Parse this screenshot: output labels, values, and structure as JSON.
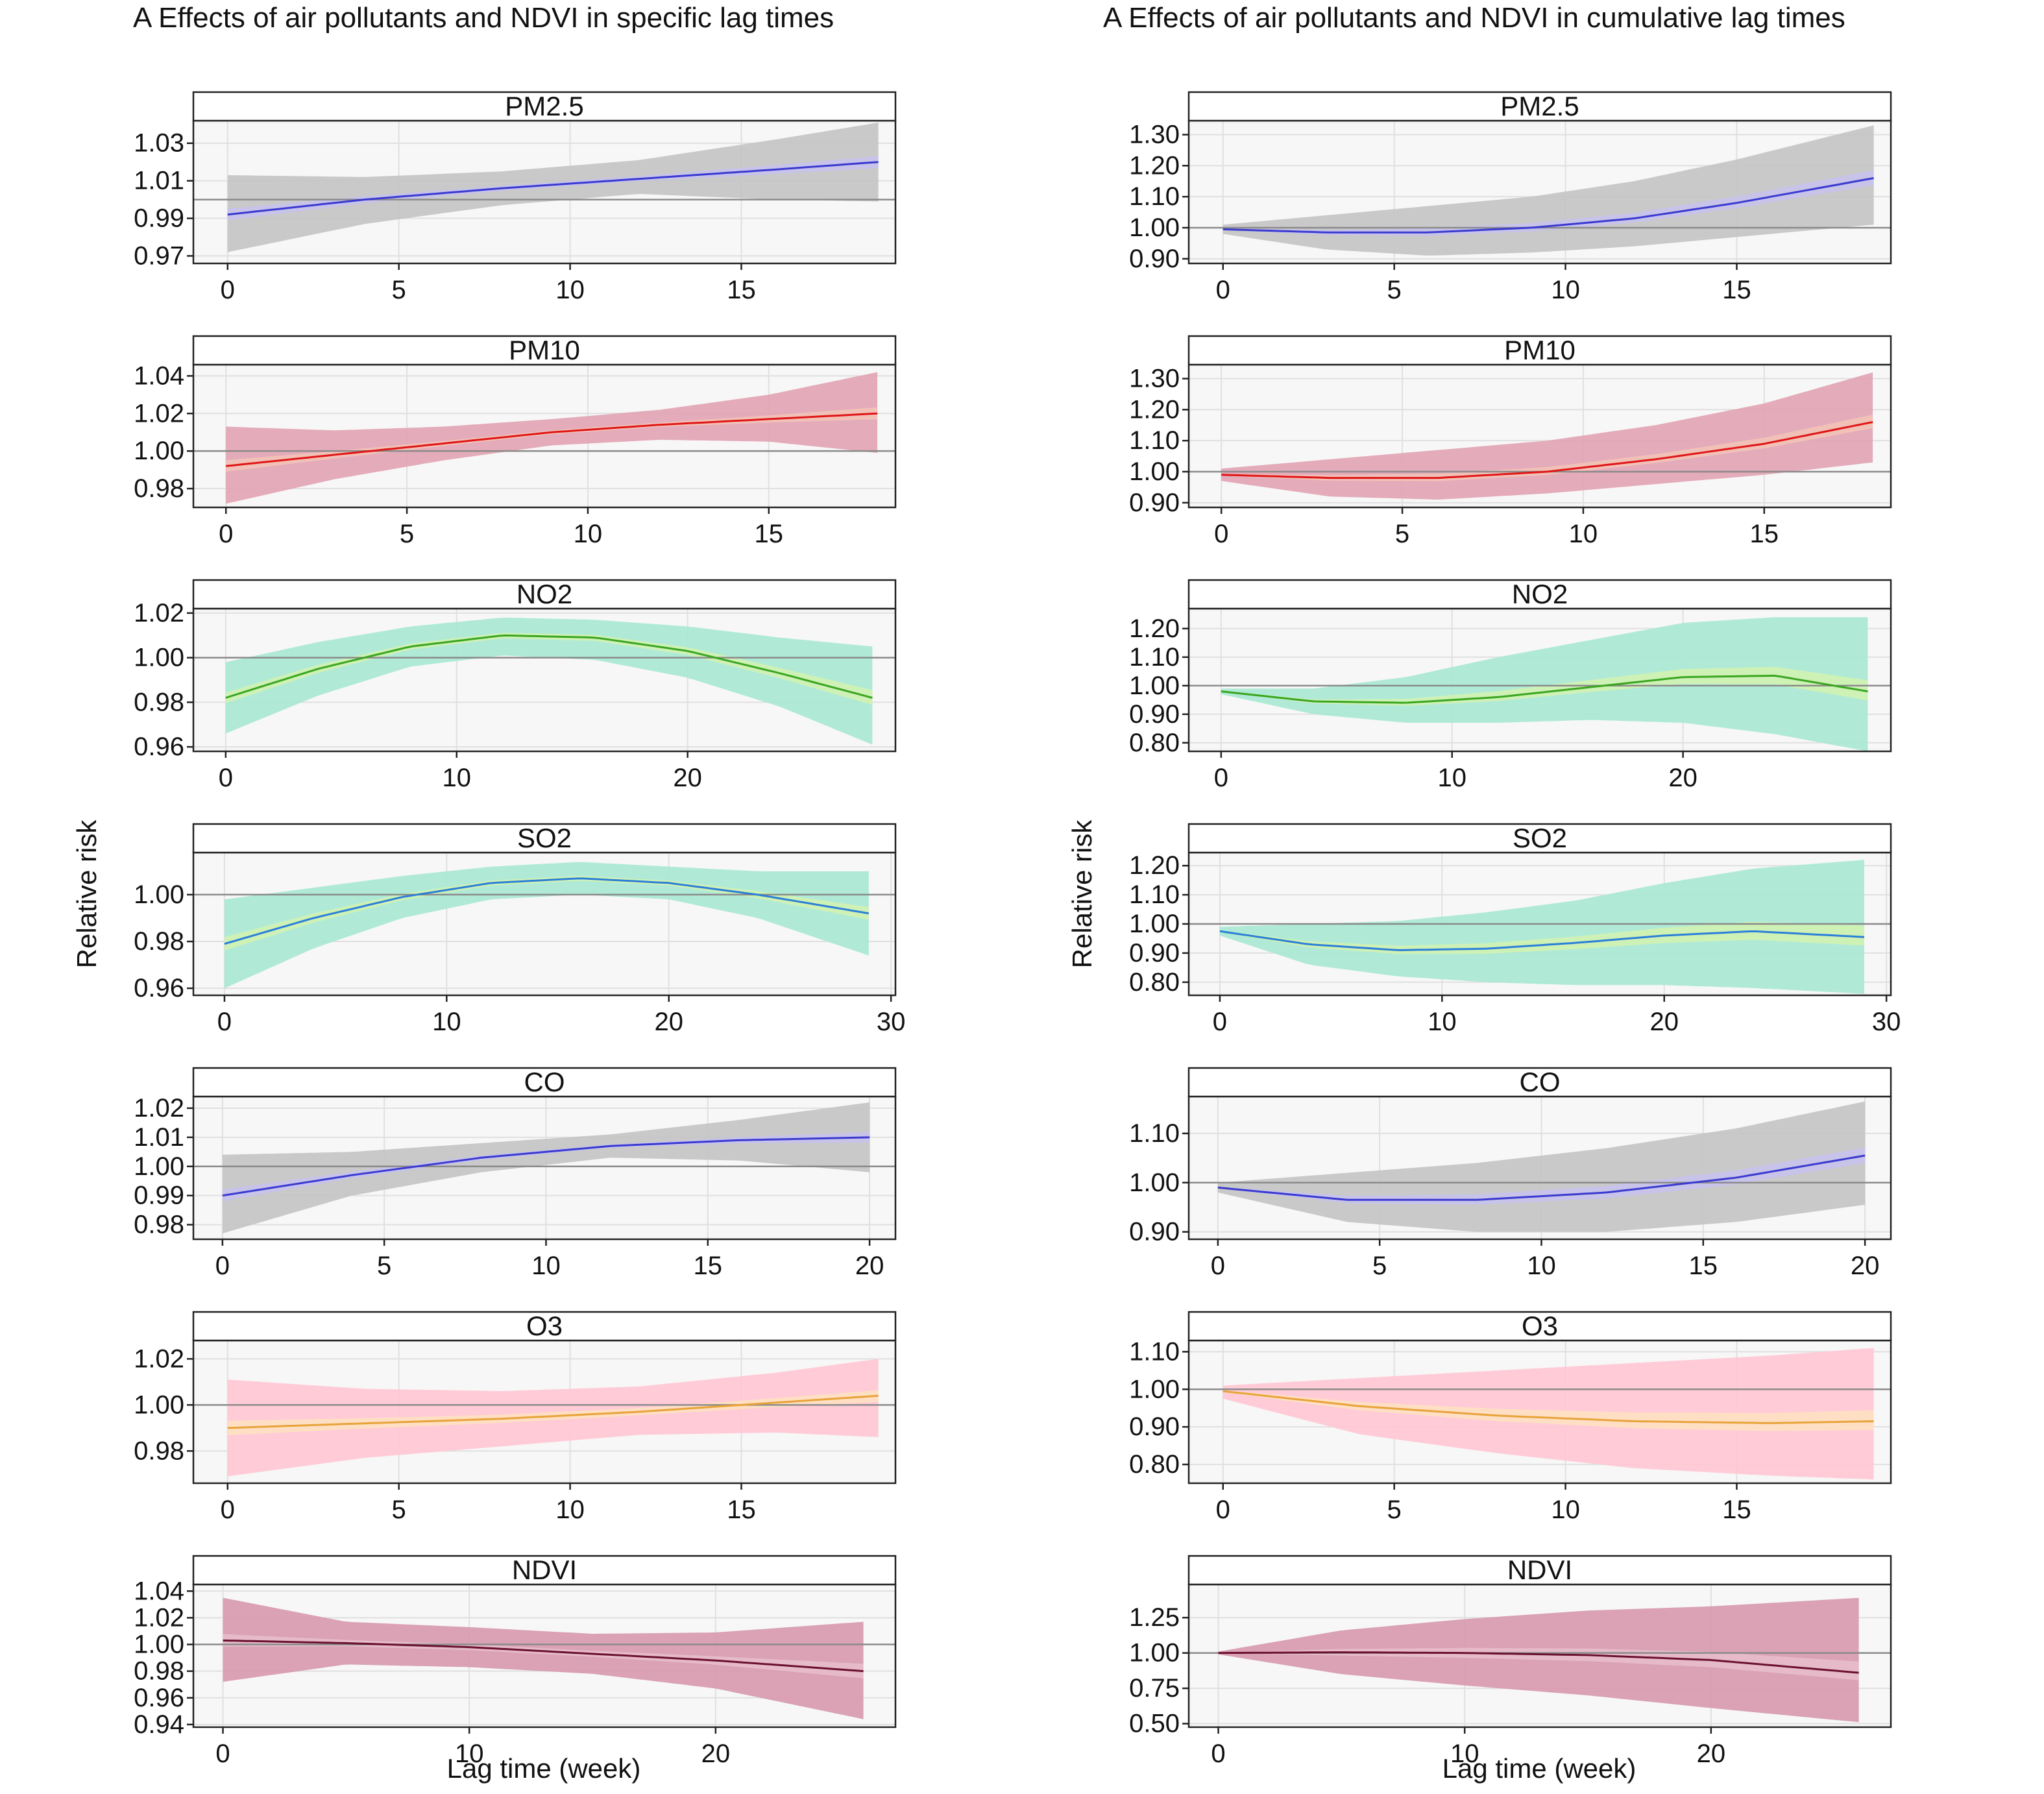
{
  "figure": {
    "left_title": "A  Effects of air pollutants and NDVI in specific lag times",
    "right_title": "A  Effects of air pollutants and NDVI in cumulative lag times",
    "ylabel": "Relative risk",
    "xlabel": "Lag time (week)"
  },
  "chart_data": [
    {
      "type": "line",
      "title": "PM2.5",
      "column": "specific",
      "xlabel": "",
      "ylabel": "",
      "xlim": [
        -1,
        19.5
      ],
      "ylim": [
        0.966,
        1.042
      ],
      "xticks": [
        0,
        5,
        10,
        15
      ],
      "yticks": [
        0.97,
        0.99,
        1.01,
        1.03
      ],
      "xtick_labels": [
        "0",
        "5",
        "10",
        "15"
      ],
      "ytick_labels": [
        "0.97",
        "0.99",
        "1.01",
        "1.03"
      ],
      "line_color": "#3a3ad0",
      "band_color": "#c4c4c4",
      "band2_color": "#c7c2ec",
      "ref": 1.0,
      "series": [
        {
          "name": "",
          "x": [
            0,
            4,
            8,
            12,
            16,
            19
          ],
          "est": [
            0.992,
            1.0,
            1.006,
            1.011,
            1.016,
            1.02
          ],
          "lower": [
            0.972,
            0.987,
            0.997,
            1.003,
            1.0,
            0.999
          ],
          "upper": [
            1.013,
            1.012,
            1.015,
            1.021,
            1.032,
            1.041
          ]
        }
      ]
    },
    {
      "type": "line",
      "title": "PM2.5",
      "column": "cumulative",
      "xlabel": "",
      "ylabel": "",
      "xlim": [
        -1,
        19.5
      ],
      "ylim": [
        0.885,
        1.345
      ],
      "xticks": [
        0,
        5,
        10,
        15
      ],
      "yticks": [
        0.9,
        1.0,
        1.1,
        1.2,
        1.3
      ],
      "xtick_labels": [
        "0",
        "5",
        "10",
        "15"
      ],
      "ytick_labels": [
        "0.90",
        "1.00",
        "1.10",
        "1.20",
        "1.30"
      ],
      "line_color": "#3a3ad0",
      "band_color": "#c4c4c4",
      "band2_color": "#c7c2ec",
      "ref": 1.0,
      "series": [
        {
          "name": "",
          "x": [
            0,
            3,
            6,
            9,
            12,
            15,
            19
          ],
          "est": [
            0.995,
            0.985,
            0.985,
            1.0,
            1.03,
            1.08,
            1.16
          ],
          "lower": [
            0.98,
            0.93,
            0.91,
            0.92,
            0.94,
            0.97,
            1.01
          ],
          "upper": [
            1.01,
            1.04,
            1.07,
            1.1,
            1.15,
            1.22,
            1.33
          ]
        }
      ]
    },
    {
      "type": "line",
      "title": "PM10",
      "column": "specific",
      "xlabel": "",
      "ylabel": "",
      "xlim": [
        -0.9,
        18.5
      ],
      "ylim": [
        0.97,
        1.046
      ],
      "xticks": [
        0,
        5,
        10,
        15
      ],
      "yticks": [
        0.98,
        1.0,
        1.02,
        1.04
      ],
      "xtick_labels": [
        "0",
        "5",
        "10",
        "15"
      ],
      "ytick_labels": [
        "0.98",
        "1.00",
        "1.02",
        "1.04"
      ],
      "line_color": "#e01616",
      "band_color": "#e2a4b4",
      "band2_color": "#f2c3b8",
      "ref": 1.0,
      "series": [
        {
          "name": "",
          "x": [
            0,
            3,
            6,
            9,
            12,
            15,
            18
          ],
          "est": [
            0.992,
            0.998,
            1.004,
            1.01,
            1.014,
            1.017,
            1.02
          ],
          "lower": [
            0.972,
            0.985,
            0.995,
            1.003,
            1.006,
            1.005,
            0.999
          ],
          "upper": [
            1.013,
            1.011,
            1.013,
            1.017,
            1.022,
            1.03,
            1.042
          ]
        }
      ]
    },
    {
      "type": "line",
      "title": "PM10",
      "column": "cumulative",
      "xlabel": "",
      "ylabel": "",
      "xlim": [
        -0.9,
        18.5
      ],
      "ylim": [
        0.885,
        1.345
      ],
      "xticks": [
        0,
        5,
        10,
        15
      ],
      "yticks": [
        0.9,
        1.0,
        1.1,
        1.2,
        1.3
      ],
      "xtick_labels": [
        "0",
        "5",
        "10",
        "15"
      ],
      "ytick_labels": [
        "0.90",
        "1.00",
        "1.10",
        "1.20",
        "1.30"
      ],
      "line_color": "#e01616",
      "band_color": "#e2a4b4",
      "band2_color": "#f2c3b8",
      "ref": 1.0,
      "series": [
        {
          "name": "",
          "x": [
            0,
            3,
            6,
            9,
            12,
            15,
            18
          ],
          "est": [
            0.99,
            0.98,
            0.98,
            1.0,
            1.04,
            1.09,
            1.16
          ],
          "lower": [
            0.97,
            0.92,
            0.91,
            0.93,
            0.96,
            0.99,
            1.03
          ],
          "upper": [
            1.01,
            1.04,
            1.07,
            1.1,
            1.15,
            1.22,
            1.32
          ]
        }
      ]
    },
    {
      "type": "line",
      "title": "NO2",
      "column": "specific",
      "xlabel": "",
      "ylabel": "",
      "xlim": [
        -1.4,
        29
      ],
      "ylim": [
        0.958,
        1.022
      ],
      "xticks": [
        0,
        10,
        20
      ],
      "yticks": [
        0.96,
        0.98,
        1.0,
        1.02
      ],
      "xtick_labels": [
        "0",
        "10",
        "20"
      ],
      "ytick_labels": [
        "0.96",
        "0.98",
        "1.00",
        "1.02"
      ],
      "line_color": "#3aa620",
      "band_color": "#a9e8d4",
      "band2_color": "#d2f2b2",
      "ref": 1.0,
      "series": [
        {
          "name": "",
          "x": [
            0,
            4,
            8,
            12,
            16,
            20,
            24,
            28
          ],
          "est": [
            0.982,
            0.995,
            1.005,
            1.01,
            1.009,
            1.003,
            0.993,
            0.982
          ],
          "lower": [
            0.966,
            0.983,
            0.996,
            1.001,
            0.999,
            0.991,
            0.978,
            0.961
          ],
          "upper": [
            0.998,
            1.007,
            1.014,
            1.018,
            1.017,
            1.014,
            1.009,
            1.005
          ]
        }
      ]
    },
    {
      "type": "line",
      "title": "NO2",
      "column": "cumulative",
      "xlabel": "",
      "ylabel": "",
      "xlim": [
        -1.4,
        29
      ],
      "ylim": [
        0.77,
        1.27
      ],
      "xticks": [
        0,
        10,
        20
      ],
      "yticks": [
        0.8,
        0.9,
        1.0,
        1.1,
        1.2
      ],
      "xtick_labels": [
        "0",
        "10",
        "20"
      ],
      "ytick_labels": [
        "0.80",
        "0.90",
        "1.00",
        "1.10",
        "1.20"
      ],
      "line_color": "#3aa620",
      "band_color": "#a9e8d4",
      "band2_color": "#d2f2b2",
      "ref": 1.0,
      "series": [
        {
          "name": "",
          "x": [
            0,
            4,
            8,
            12,
            16,
            20,
            24,
            28
          ],
          "est": [
            0.98,
            0.945,
            0.94,
            0.96,
            0.995,
            1.03,
            1.035,
            0.98
          ],
          "lower": [
            0.97,
            0.9,
            0.87,
            0.87,
            0.88,
            0.87,
            0.83,
            0.77
          ],
          "upper": [
            0.99,
            0.99,
            1.03,
            1.1,
            1.16,
            1.22,
            1.24,
            1.24
          ]
        }
      ]
    },
    {
      "type": "line",
      "title": "SO2",
      "column": "specific",
      "xlabel": "",
      "ylabel": "",
      "xlim": [
        -1.4,
        30.2
      ],
      "ylim": [
        0.957,
        1.018
      ],
      "xticks": [
        0,
        10,
        20,
        30
      ],
      "yticks": [
        0.96,
        0.98,
        1.0
      ],
      "xtick_labels": [
        "0",
        "10",
        "20",
        "30"
      ],
      "ytick_labels": [
        "0.96",
        "0.98",
        "1.00"
      ],
      "line_color": "#2a7fd8",
      "band_color": "#a9e8d4",
      "band2_color": "#d2f2b2",
      "ref": 1.0,
      "series": [
        {
          "name": "",
          "x": [
            0,
            4,
            8,
            12,
            16,
            20,
            24,
            29
          ],
          "est": [
            0.979,
            0.99,
            0.999,
            1.005,
            1.007,
            1.005,
            1.0,
            0.992
          ],
          "lower": [
            0.96,
            0.977,
            0.99,
            0.998,
            1.0,
            0.998,
            0.99,
            0.974
          ],
          "upper": [
            0.998,
            1.003,
            1.008,
            1.012,
            1.014,
            1.012,
            1.01,
            1.01
          ]
        }
      ]
    },
    {
      "type": "line",
      "title": "SO2",
      "column": "cumulative",
      "xlabel": "",
      "ylabel": "",
      "xlim": [
        -1.4,
        30.2
      ],
      "ylim": [
        0.755,
        1.245
      ],
      "xticks": [
        0,
        10,
        20,
        30
      ],
      "yticks": [
        0.8,
        0.9,
        1.0,
        1.1,
        1.2
      ],
      "xtick_labels": [
        "0",
        "10",
        "20",
        "30"
      ],
      "ytick_labels": [
        "0.80",
        "0.90",
        "1.00",
        "1.10",
        "1.20"
      ],
      "line_color": "#2a7fd8",
      "band_color": "#a9e8d4",
      "band2_color": "#d2f2b2",
      "ref": 1.0,
      "series": [
        {
          "name": "",
          "x": [
            0,
            4,
            8,
            12,
            16,
            20,
            24,
            29
          ],
          "est": [
            0.975,
            0.93,
            0.91,
            0.915,
            0.935,
            0.96,
            0.975,
            0.955
          ],
          "lower": [
            0.96,
            0.86,
            0.82,
            0.8,
            0.79,
            0.79,
            0.78,
            0.76
          ],
          "upper": [
            0.99,
            1.0,
            1.01,
            1.04,
            1.08,
            1.14,
            1.19,
            1.22
          ]
        }
      ]
    },
    {
      "type": "line",
      "title": "CO",
      "column": "specific",
      "xlabel": "",
      "ylabel": "",
      "xlim": [
        -0.9,
        20.8
      ],
      "ylim": [
        0.975,
        1.024
      ],
      "xticks": [
        0,
        5,
        10,
        15,
        20
      ],
      "yticks": [
        0.98,
        0.99,
        1.0,
        1.01,
        1.02
      ],
      "xtick_labels": [
        "0",
        "5",
        "10",
        "15",
        "20"
      ],
      "ytick_labels": [
        "0.98",
        "0.99",
        "1.00",
        "1.01",
        "1.02"
      ],
      "line_color": "#3a3ad0",
      "band_color": "#c4c4c4",
      "band2_color": "#c7c2ec",
      "ref": 1.0,
      "series": [
        {
          "name": "",
          "x": [
            0,
            4,
            8,
            12,
            16,
            20
          ],
          "est": [
            0.99,
            0.997,
            1.003,
            1.007,
            1.009,
            1.01
          ],
          "lower": [
            0.977,
            0.99,
            0.998,
            1.003,
            1.002,
            0.998
          ],
          "upper": [
            1.004,
            1.005,
            1.008,
            1.011,
            1.016,
            1.022
          ]
        }
      ]
    },
    {
      "type": "line",
      "title": "CO",
      "column": "cumulative",
      "xlabel": "",
      "ylabel": "",
      "xlim": [
        -0.9,
        20.8
      ],
      "ylim": [
        0.885,
        1.175
      ],
      "xticks": [
        0,
        5,
        10,
        15,
        20
      ],
      "yticks": [
        0.9,
        1.0,
        1.1
      ],
      "xtick_labels": [
        "0",
        "5",
        "10",
        "15",
        "20"
      ],
      "ytick_labels": [
        "0.90",
        "1.00",
        "1.10"
      ],
      "line_color": "#3a3ad0",
      "band_color": "#c4c4c4",
      "band2_color": "#c7c2ec",
      "ref": 1.0,
      "series": [
        {
          "name": "",
          "x": [
            0,
            4,
            8,
            12,
            16,
            20
          ],
          "est": [
            0.99,
            0.965,
            0.965,
            0.98,
            1.01,
            1.055
          ],
          "lower": [
            0.98,
            0.92,
            0.9,
            0.9,
            0.92,
            0.955
          ],
          "upper": [
            1.0,
            1.02,
            1.04,
            1.07,
            1.11,
            1.165
          ]
        }
      ]
    },
    {
      "type": "line",
      "title": "O3",
      "column": "specific",
      "xlabel": "",
      "ylabel": "",
      "xlim": [
        -1,
        19.5
      ],
      "ylim": [
        0.966,
        1.028
      ],
      "xticks": [
        0,
        5,
        10,
        15
      ],
      "yticks": [
        0.98,
        1.0,
        1.02
      ],
      "xtick_labels": [
        "0",
        "5",
        "10",
        "15"
      ],
      "ytick_labels": [
        "0.98",
        "1.00",
        "1.02"
      ],
      "line_color": "#e8a33a",
      "band_color": "#ffc7d4",
      "band2_color": "#ffe1c2",
      "ref": 1.0,
      "series": [
        {
          "name": "",
          "x": [
            0,
            4,
            8,
            12,
            16,
            19
          ],
          "est": [
            0.99,
            0.992,
            0.994,
            0.997,
            1.001,
            1.004
          ],
          "lower": [
            0.969,
            0.977,
            0.982,
            0.987,
            0.988,
            0.986
          ],
          "upper": [
            1.011,
            1.007,
            1.006,
            1.008,
            1.014,
            1.02
          ]
        }
      ]
    },
    {
      "type": "line",
      "title": "O3",
      "column": "cumulative",
      "xlabel": "",
      "ylabel": "",
      "xlim": [
        -1,
        19.5
      ],
      "ylim": [
        0.75,
        1.13
      ],
      "xticks": [
        0,
        5,
        10,
        15
      ],
      "yticks": [
        0.8,
        0.9,
        1.0,
        1.1
      ],
      "xtick_labels": [
        "0",
        "5",
        "10",
        "15"
      ],
      "ytick_labels": [
        "0.80",
        "0.90",
        "1.00",
        "1.10"
      ],
      "line_color": "#e8a33a",
      "band_color": "#ffc7d4",
      "band2_color": "#ffe1c2",
      "ref": 1.0,
      "series": [
        {
          "name": "",
          "x": [
            0,
            4,
            8,
            12,
            16,
            19
          ],
          "est": [
            0.995,
            0.955,
            0.93,
            0.915,
            0.91,
            0.915
          ],
          "lower": [
            0.975,
            0.88,
            0.83,
            0.79,
            0.77,
            0.76
          ],
          "upper": [
            1.01,
            1.03,
            1.05,
            1.07,
            1.09,
            1.11
          ]
        }
      ]
    },
    {
      "type": "line",
      "title": "NDVI",
      "column": "specific",
      "xlabel": "Lag time (week)",
      "ylabel": "",
      "xlim": [
        -1.2,
        27.3
      ],
      "ylim": [
        0.938,
        1.045
      ],
      "xticks": [
        0,
        10,
        20
      ],
      "yticks": [
        0.94,
        0.96,
        0.98,
        1.0,
        1.02,
        1.04
      ],
      "xtick_labels": [
        "0",
        "10",
        "20"
      ],
      "ytick_labels": [
        "0.94",
        "0.96",
        "0.98",
        "1.00",
        "1.02",
        "1.04"
      ],
      "line_color": "#6b1030",
      "band_color": "#d79aae",
      "band2_color": "#e7bccb",
      "ref": 1.0,
      "series": [
        {
          "name": "",
          "x": [
            0,
            5,
            10,
            15,
            20,
            26
          ],
          "est": [
            1.003,
            1.001,
            0.998,
            0.993,
            0.988,
            0.98
          ],
          "lower": [
            0.972,
            0.985,
            0.983,
            0.978,
            0.967,
            0.944
          ],
          "upper": [
            1.035,
            1.017,
            1.013,
            1.008,
            1.009,
            1.017
          ]
        }
      ]
    },
    {
      "type": "line",
      "title": "NDVI",
      "column": "cumulative",
      "xlabel": "Lag time (week)",
      "ylabel": "",
      "xlim": [
        -1.2,
        27.3
      ],
      "ylim": [
        0.475,
        1.485
      ],
      "xticks": [
        0,
        10,
        20
      ],
      "yticks": [
        0.5,
        0.75,
        1.0,
        1.25
      ],
      "xtick_labels": [
        "0",
        "10",
        "20"
      ],
      "ytick_labels": [
        "0.50",
        "0.75",
        "1.00",
        "1.25"
      ],
      "line_color": "#6b1030",
      "band_color": "#d79aae",
      "band2_color": "#e7bccb",
      "ref": 1.0,
      "series": [
        {
          "name": "",
          "x": [
            0,
            5,
            10,
            15,
            20,
            26
          ],
          "est": [
            1.0,
            1.005,
            1.0,
            0.985,
            0.95,
            0.86
          ],
          "lower": [
            0.99,
            0.85,
            0.77,
            0.7,
            0.61,
            0.51
          ],
          "upper": [
            1.01,
            1.16,
            1.24,
            1.3,
            1.33,
            1.39
          ]
        }
      ]
    }
  ]
}
